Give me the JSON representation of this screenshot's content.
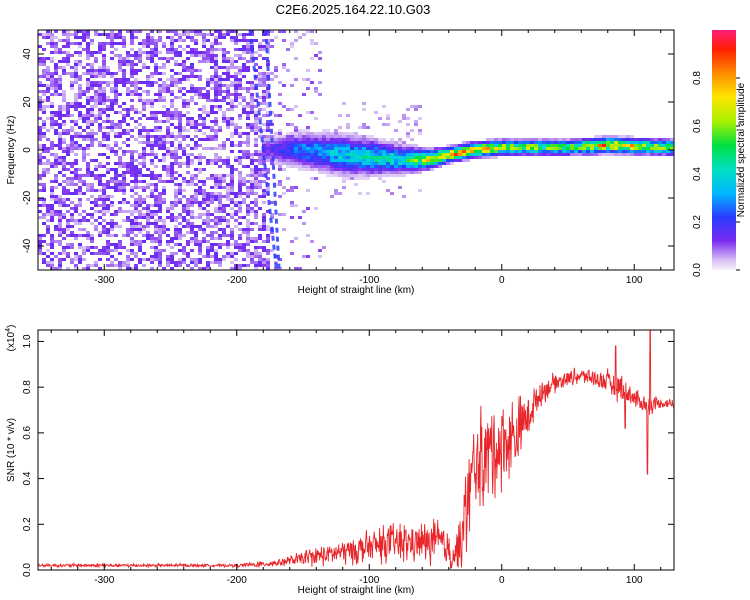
{
  "figure": {
    "title": "C2E6.2025.164.22.10.G03"
  },
  "chart_data": [
    {
      "type": "heatmap",
      "xlabel": "Height of straight line (km)",
      "ylabel": "Frequency (Hz)",
      "xlim": [
        -350,
        130
      ],
      "ylim": [
        -50,
        50
      ],
      "x_ticks": [
        -300,
        -200,
        -100,
        0,
        100
      ],
      "y_ticks": [
        -40,
        -20,
        0,
        20,
        40
      ],
      "colorbar": {
        "label": "Normalized spectral amplitude",
        "range": [
          0,
          1
        ],
        "ticks": [
          0.0,
          0.2,
          0.4,
          0.6,
          0.8
        ],
        "colormap": "rainbow"
      },
      "features": {
        "noise_region_x": [
          -350,
          -175
        ],
        "noise_amplitude": 0.1,
        "diagonal_streaks": [
          {
            "x_top": -190,
            "x_bottom": -170
          },
          {
            "x_top": -178,
            "x_bottom": -168
          }
        ],
        "signal_ridge": [
          {
            "x": -175,
            "freq": 0,
            "amplitude": 0.15,
            "width_hz": 7
          },
          {
            "x": -150,
            "freq": 0,
            "amplitude": 0.3,
            "width_hz": 9
          },
          {
            "x": -120,
            "freq": -2,
            "amplitude": 0.4,
            "width_hz": 10
          },
          {
            "x": -100,
            "freq": -3,
            "amplitude": 0.45,
            "width_hz": 9
          },
          {
            "x": -75,
            "freq": -4,
            "amplitude": 0.45,
            "width_hz": 7
          },
          {
            "x": -55,
            "freq": -4,
            "amplitude": 0.75,
            "width_hz": 5
          },
          {
            "x": -40,
            "freq": -2,
            "amplitude": 0.8,
            "width_hz": 4
          },
          {
            "x": -20,
            "freq": 0,
            "amplitude": 0.85,
            "width_hz": 4
          },
          {
            "x": 0,
            "freq": 1,
            "amplitude": 0.7,
            "width_hz": 4
          },
          {
            "x": 50,
            "freq": 1,
            "amplitude": 0.55,
            "width_hz": 4
          },
          {
            "x": 80,
            "freq": 2,
            "amplitude": 0.85,
            "width_hz": 4
          },
          {
            "x": 130,
            "freq": 1,
            "amplitude": 0.6,
            "width_hz": 4
          }
        ]
      }
    },
    {
      "type": "line",
      "xlabel": "Height of straight line (km)",
      "ylabel": "SNR (10 * v/v)",
      "y_multiplier_label": "(x10",
      "y_multiplier_exponent": "4",
      "y_multiplier_close": ")",
      "xlim": [
        -350,
        130
      ],
      "ylim": [
        0,
        1.05
      ],
      "x_ticks": [
        -300,
        -200,
        -100,
        0,
        100
      ],
      "y_ticks": [
        0.0,
        0.2,
        0.4,
        0.6,
        0.8,
        1.0
      ],
      "color": "#e8262a",
      "series": [
        {
          "x": [
            -350,
            -300,
            -250,
            -200,
            -180,
            -160,
            -140,
            -120,
            -100,
            -80,
            -60,
            -45,
            -38,
            -30,
            -25,
            -20,
            -10,
            0,
            10,
            20,
            30,
            40,
            50,
            60,
            70,
            80,
            90,
            100,
            110,
            120,
            130
          ],
          "values": [
            0.02,
            0.02,
            0.02,
            0.02,
            0.025,
            0.04,
            0.06,
            0.08,
            0.1,
            0.12,
            0.12,
            0.12,
            0.06,
            0.12,
            0.35,
            0.45,
            0.52,
            0.55,
            0.58,
            0.68,
            0.78,
            0.82,
            0.84,
            0.85,
            0.84,
            0.82,
            0.8,
            0.75,
            0.72,
            0.73,
            0.73
          ],
          "noise": [
            0.005,
            0.006,
            0.005,
            0.005,
            0.01,
            0.015,
            0.03,
            0.04,
            0.05,
            0.06,
            0.06,
            0.07,
            0.04,
            0.12,
            0.15,
            0.15,
            0.15,
            0.14,
            0.12,
            0.07,
            0.04,
            0.03,
            0.025,
            0.025,
            0.03,
            0.04,
            0.05,
            0.03,
            0.03,
            0.02,
            0.02
          ]
        }
      ],
      "spikes": [
        {
          "x": 86,
          "y": 0.98
        },
        {
          "x": 93,
          "y": 0.62
        },
        {
          "x": 110,
          "y": 0.42
        },
        {
          "x": 112,
          "y": 1.05
        }
      ]
    }
  ]
}
